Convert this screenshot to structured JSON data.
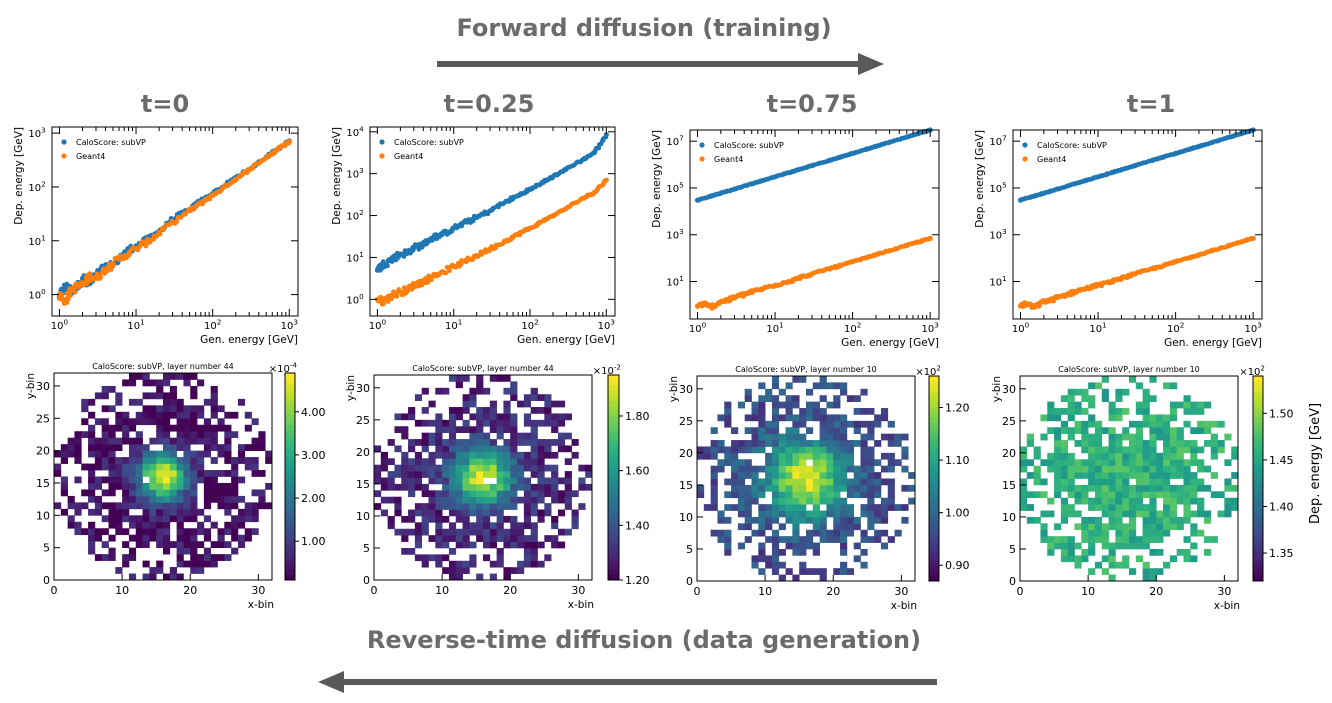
{
  "header": {
    "forward_label": "Forward diffusion (training)",
    "reverse_label": "Reverse-time diffusion (data generation)",
    "arrow_color": "#595959",
    "text_color": "#6b6b6b"
  },
  "time_labels": [
    "t=0",
    "t=0.25",
    "t=0.75",
    "t=1"
  ],
  "colors": {
    "calo": "#1f77b4",
    "geant": "#ff7f0e"
  },
  "chart_data": [
    {
      "type": "scatter",
      "id": "scatter-t0",
      "xlabel": "Gen. energy [GeV]",
      "ylabel": "Dep. energy [GeV]",
      "xscale": "log",
      "yscale": "log",
      "xlim": [
        0.8,
        1300
      ],
      "ylim": [
        0.4,
        1300
      ],
      "xticks": [
        1,
        10,
        100,
        1000
      ],
      "xticklabels": [
        "10^0",
        "10^1",
        "10^2",
        "10^3"
      ],
      "yticks": [
        1,
        10,
        100,
        1000
      ],
      "yticklabels": [
        "10^0",
        "10^1",
        "10^2",
        "10^3"
      ],
      "legend": {
        "placement": "top-left",
        "entries": [
          "CaloScore: subVP",
          "Geant4"
        ]
      },
      "series": [
        {
          "name": "CaloScore: subVP",
          "color": "#1f77b4",
          "x": [
            1.0,
            1.2,
            1.5,
            2.0,
            2.5,
            3.0,
            4.0,
            5.0,
            7.0,
            10,
            15,
            20,
            30,
            50,
            70,
            100,
            150,
            200,
            300,
            500,
            700,
            1000
          ],
          "y": [
            0.9,
            1.4,
            1.1,
            2.0,
            1.6,
            2.4,
            3.2,
            3.5,
            6.0,
            8.0,
            11,
            15,
            25,
            38,
            55,
            75,
            110,
            150,
            210,
            360,
            500,
            720
          ]
        },
        {
          "name": "Geant4",
          "color": "#ff7f0e",
          "x": [
            1.0,
            1.2,
            1.5,
            2.0,
            2.5,
            3.0,
            4.0,
            5.0,
            7.0,
            10,
            15,
            20,
            30,
            50,
            70,
            100,
            150,
            200,
            300,
            500,
            700,
            1000
          ],
          "y": [
            1.0,
            0.8,
            1.3,
            1.5,
            2.2,
            2.0,
            3.0,
            3.8,
            5.2,
            7.2,
            10,
            14,
            22,
            36,
            50,
            70,
            105,
            140,
            210,
            350,
            490,
            700
          ]
        }
      ]
    },
    {
      "type": "scatter",
      "id": "scatter-t025",
      "xlabel": "Gen. energy [GeV]",
      "ylabel": "Dep. energy [GeV]",
      "xscale": "log",
      "yscale": "log",
      "xlim": [
        0.8,
        1300
      ],
      "ylim": [
        0.4,
        13000
      ],
      "xticks": [
        1,
        10,
        100,
        1000
      ],
      "xticklabels": [
        "10^0",
        "10^1",
        "10^2",
        "10^3"
      ],
      "yticks": [
        1,
        10,
        100,
        1000,
        10000
      ],
      "yticklabels": [
        "10^0",
        "10^1",
        "10^2",
        "10^3",
        "10^4"
      ],
      "legend": {
        "placement": "top-left",
        "entries": [
          "CaloScore: subVP",
          "Geant4"
        ]
      },
      "series": [
        {
          "name": "CaloScore: subVP",
          "color": "#1f77b4",
          "x": [
            1.0,
            1.2,
            1.5,
            2.0,
            2.5,
            3.0,
            4.0,
            5.0,
            7.0,
            10,
            15,
            20,
            30,
            50,
            70,
            100,
            150,
            200,
            300,
            500,
            700,
            1000
          ],
          "y": [
            5.0,
            7.0,
            8.5,
            12,
            13,
            17,
            20,
            28,
            35,
            50,
            70,
            90,
            130,
            220,
            300,
            420,
            620,
            850,
            1300,
            2200,
            3200,
            8500
          ]
        },
        {
          "name": "Geant4",
          "color": "#ff7f0e",
          "x": [
            1.0,
            1.2,
            1.5,
            2.0,
            2.5,
            3.0,
            4.0,
            5.0,
            7.0,
            10,
            15,
            20,
            30,
            50,
            70,
            100,
            150,
            200,
            300,
            500,
            700,
            1000
          ],
          "y": [
            1.0,
            0.9,
            1.2,
            1.5,
            1.7,
            2.2,
            2.6,
            3.3,
            4.5,
            6.0,
            8.5,
            11,
            16,
            26,
            36,
            50,
            75,
            100,
            150,
            260,
            360,
            700
          ]
        }
      ]
    },
    {
      "type": "scatter",
      "id": "scatter-t075",
      "xlabel": "Gen. energy [GeV]",
      "ylabel": "Dep. energy [GeV]",
      "xscale": "log",
      "yscale": "log",
      "xlim": [
        0.8,
        1300
      ],
      "ylim": [
        0.25,
        30000000
      ],
      "xticks": [
        1,
        10,
        100,
        1000
      ],
      "xticklabels": [
        "10^0",
        "10^1",
        "10^2",
        "10^3"
      ],
      "yticks": [
        10,
        1000,
        100000,
        10000000
      ],
      "yticklabels": [
        "10^1",
        "10^3",
        "10^5",
        "10^7"
      ],
      "legend": {
        "placement": "top-left",
        "entries": [
          "CaloScore: subVP",
          "Geant4"
        ]
      },
      "series": [
        {
          "name": "CaloScore: subVP",
          "color": "#1f77b4",
          "x": [
            1.0,
            1.5,
            2.0,
            3.0,
            5.0,
            7.0,
            10,
            15,
            20,
            30,
            50,
            70,
            100,
            150,
            200,
            300,
            500,
            700,
            1000
          ],
          "y": [
            30000,
            45000,
            60000,
            90000,
            150000,
            210000,
            300000,
            450000,
            600000,
            900000,
            1500000,
            2100000,
            3000000,
            4500000,
            6000000,
            9000000,
            15000000,
            21000000,
            30000000
          ]
        },
        {
          "name": "Geant4",
          "color": "#ff7f0e",
          "x": [
            1.0,
            1.2,
            1.5,
            2.0,
            2.5,
            3.0,
            4.0,
            5.0,
            7.0,
            10,
            15,
            20,
            30,
            50,
            70,
            100,
            150,
            200,
            300,
            500,
            700,
            1000
          ],
          "y": [
            0.9,
            1.1,
            0.8,
            1.4,
            1.6,
            2.1,
            2.8,
            3.6,
            5.0,
            7.0,
            10,
            14,
            21,
            35,
            48,
            70,
            104,
            140,
            210,
            350,
            490,
            700
          ]
        }
      ]
    },
    {
      "type": "scatter",
      "id": "scatter-t1",
      "xlabel": "Gen. energy [GeV]",
      "ylabel": "Dep. energy [GeV]",
      "xscale": "log",
      "yscale": "log",
      "xlim": [
        0.8,
        1300
      ],
      "ylim": [
        0.25,
        30000000
      ],
      "xticks": [
        1,
        10,
        100,
        1000
      ],
      "xticklabels": [
        "10^0",
        "10^1",
        "10^2",
        "10^3"
      ],
      "yticks": [
        10,
        1000,
        100000,
        10000000
      ],
      "yticklabels": [
        "10^1",
        "10^3",
        "10^5",
        "10^7"
      ],
      "legend": {
        "placement": "top-left",
        "entries": [
          "CaloScore: subVP",
          "Geant4"
        ]
      },
      "series": [
        {
          "name": "CaloScore: subVP",
          "color": "#1f77b4",
          "x": [
            1.0,
            1.5,
            2.0,
            3.0,
            5.0,
            7.0,
            10,
            15,
            20,
            30,
            50,
            70,
            100,
            150,
            200,
            300,
            500,
            700,
            1000
          ],
          "y": [
            30000,
            45000,
            60000,
            90000,
            150000,
            210000,
            300000,
            450000,
            600000,
            900000,
            1500000,
            2100000,
            3000000,
            4500000,
            6000000,
            9000000,
            15000000,
            21000000,
            30000000
          ]
        },
        {
          "name": "Geant4",
          "color": "#ff7f0e",
          "x": [
            1.0,
            1.2,
            1.5,
            2.0,
            2.5,
            3.0,
            4.0,
            5.0,
            7.0,
            10,
            15,
            20,
            30,
            50,
            70,
            100,
            150,
            200,
            300,
            500,
            700,
            1000
          ],
          "y": [
            0.9,
            1.1,
            0.8,
            1.4,
            1.6,
            2.1,
            2.8,
            3.6,
            5.0,
            7.0,
            10,
            14,
            21,
            35,
            48,
            70,
            104,
            140,
            210,
            350,
            490,
            700
          ]
        }
      ]
    },
    {
      "type": "heatmap",
      "id": "heatmap-t0",
      "title": "CaloScore: subVP, layer number 44",
      "xlabel": "x-bin",
      "ylabel": "y-bin",
      "xlim": [
        0,
        32
      ],
      "ylim": [
        0,
        32
      ],
      "xticks": [
        0,
        10,
        20,
        30
      ],
      "yticks": [
        0,
        5,
        10,
        15,
        20,
        25,
        30
      ],
      "colorbar": {
        "multiplier": "×10^-4",
        "ticks": [
          1.0,
          2.0,
          3.0,
          4.0
        ],
        "ticklabels": [
          "1.00",
          "2.00",
          "3.00",
          "4.00"
        ],
        "range": [
          0.1,
          4.9
        ]
      },
      "center": [
        16,
        16
      ],
      "peak": 4.9,
      "background": 0.3,
      "spread": 2.5
    },
    {
      "type": "heatmap",
      "id": "heatmap-t025",
      "title": "CaloScore: subVP, layer number 44",
      "xlabel": "x-bin",
      "ylabel": "y-bin",
      "xlim": [
        0,
        32
      ],
      "ylim": [
        0,
        32
      ],
      "xticks": [
        0,
        10,
        20,
        30
      ],
      "yticks": [
        0,
        5,
        10,
        15,
        20,
        25,
        30
      ],
      "colorbar": {
        "multiplier": "×10^-2",
        "ticks": [
          1.2,
          1.4,
          1.6,
          1.8
        ],
        "ticklabels": [
          "1.20",
          "1.40",
          "1.60",
          "1.80"
        ],
        "range": [
          1.2,
          1.95
        ]
      },
      "center": [
        16,
        16
      ],
      "peak": 1.92,
      "background": 1.28,
      "spread": 3.0
    },
    {
      "type": "heatmap",
      "id": "heatmap-t075",
      "title": "CaloScore: subVP, layer number 10",
      "xlabel": "x-bin",
      "ylabel": "y-bin",
      "xlim": [
        0,
        32
      ],
      "ylim": [
        0,
        32
      ],
      "xticks": [
        0,
        10,
        20,
        30
      ],
      "yticks": [
        0,
        5,
        10,
        15,
        20,
        25,
        30
      ],
      "colorbar": {
        "multiplier": "×10^2",
        "ticks": [
          0.9,
          1.0,
          1.1,
          1.2
        ],
        "ticklabels": [
          "0.90",
          "1.00",
          "1.10",
          "1.20"
        ],
        "range": [
          0.87,
          1.26
        ]
      },
      "center": [
        16,
        16
      ],
      "peak": 1.24,
      "background": 0.96,
      "spread": 4.0
    },
    {
      "type": "heatmap",
      "id": "heatmap-t1",
      "title": "CaloScore: subVP, layer number 10",
      "xlabel": "x-bin",
      "ylabel": "y-bin",
      "xlim": [
        0,
        32
      ],
      "ylim": [
        0,
        32
      ],
      "xticks": [
        0,
        10,
        20,
        30
      ],
      "yticks": [
        0,
        5,
        10,
        15,
        20,
        25,
        30
      ],
      "colorbar": {
        "multiplier": "×10^2",
        "label": "Dep. energy [GeV]",
        "ticks": [
          1.35,
          1.4,
          1.45,
          1.5
        ],
        "ticklabels": [
          "1.35",
          "1.40",
          "1.45",
          "1.50"
        ],
        "range": [
          1.32,
          1.54
        ]
      },
      "center": [
        16,
        16
      ],
      "peak": 1.46,
      "background": 1.43,
      "spread": 30
    }
  ]
}
